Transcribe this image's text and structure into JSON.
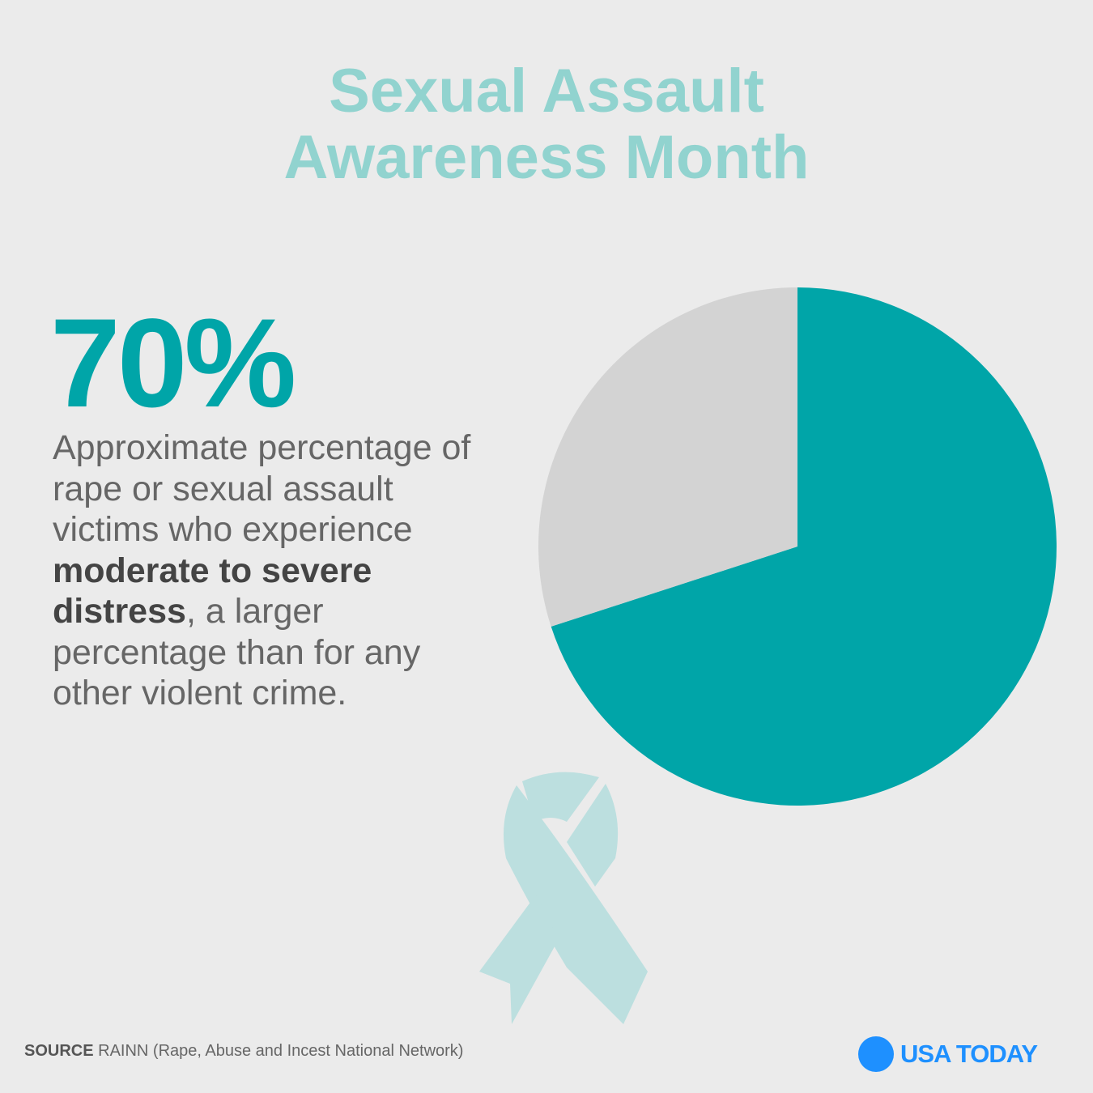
{
  "chart_data": {
    "type": "pie",
    "title": "Sexual Assault Awareness Month",
    "values": [
      70,
      30
    ],
    "value_labels": [
      "70%",
      null
    ],
    "colors": [
      "#00a5a8",
      "#d3d3d3"
    ],
    "description": {
      "before": "Approximate percentage of rape or sexual assault victims who experience ",
      "emphasis": "moderate to severe distress",
      "after": ", a larger percentage than for any other violent crime."
    },
    "source": {
      "label": "SOURCE",
      "text": "RAINN (Rape, Abuse and Incest National Network)"
    },
    "brand": "USA TODAY"
  }
}
